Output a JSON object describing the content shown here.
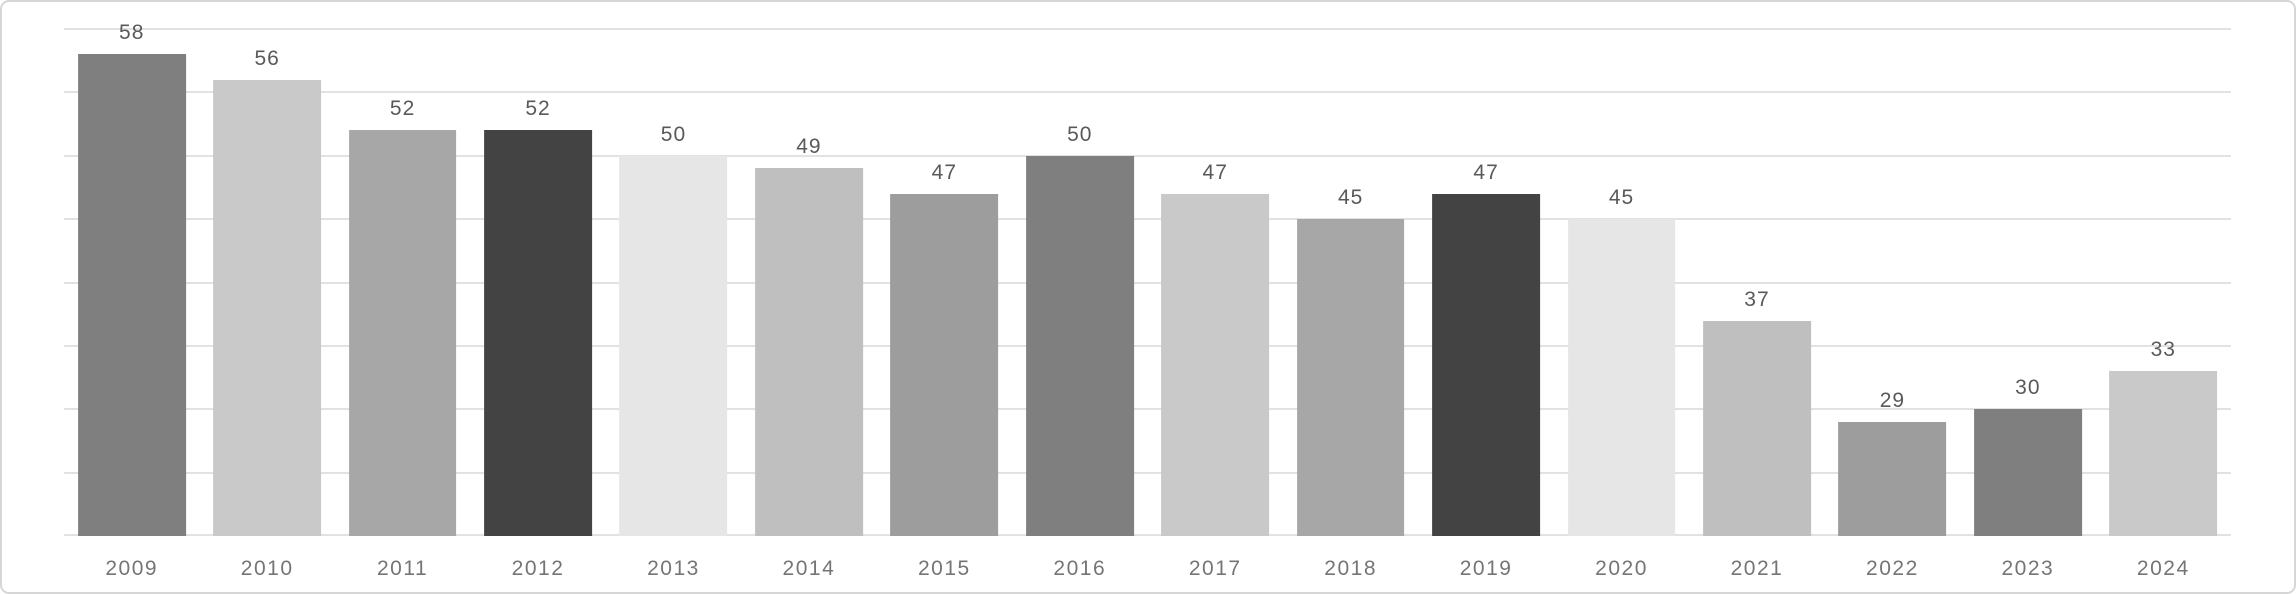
{
  "chart_data": {
    "type": "bar",
    "title": "",
    "xlabel": "",
    "ylabel": "",
    "categories": [
      "2009",
      "2010",
      "2011",
      "2012",
      "2013",
      "2014",
      "2015",
      "2016",
      "2017",
      "2018",
      "2019",
      "2020",
      "2021",
      "2022",
      "2023",
      "2024"
    ],
    "values": [
      58,
      56,
      52,
      52,
      50,
      49,
      47,
      50,
      47,
      45,
      47,
      45,
      37,
      29,
      30,
      33
    ],
    "bar_colors": [
      "#7f7f7f",
      "#c9c9c9",
      "#a7a7a7",
      "#434343",
      "#e6e6e6",
      "#bfbfbf",
      "#9d9d9d",
      "#7f7f7f",
      "#c9c9c9",
      "#a7a7a7",
      "#434343",
      "#e6e6e6",
      "#bfbfbf",
      "#9d9d9d",
      "#7f7f7f",
      "#c9c9c9"
    ],
    "ylim": [
      20,
      60
    ],
    "gridline_step": 5,
    "grid": "horizontal",
    "legend": "none",
    "y_axis_tick_labels": "hidden",
    "data_labels": "value above each bar"
  },
  "style": {
    "background_color": "#ffffff",
    "card_border_color": "#d6d6d6",
    "gridline_color": "#e2e2e2",
    "value_label_color": "#595959",
    "tick_label_color": "#757575"
  }
}
